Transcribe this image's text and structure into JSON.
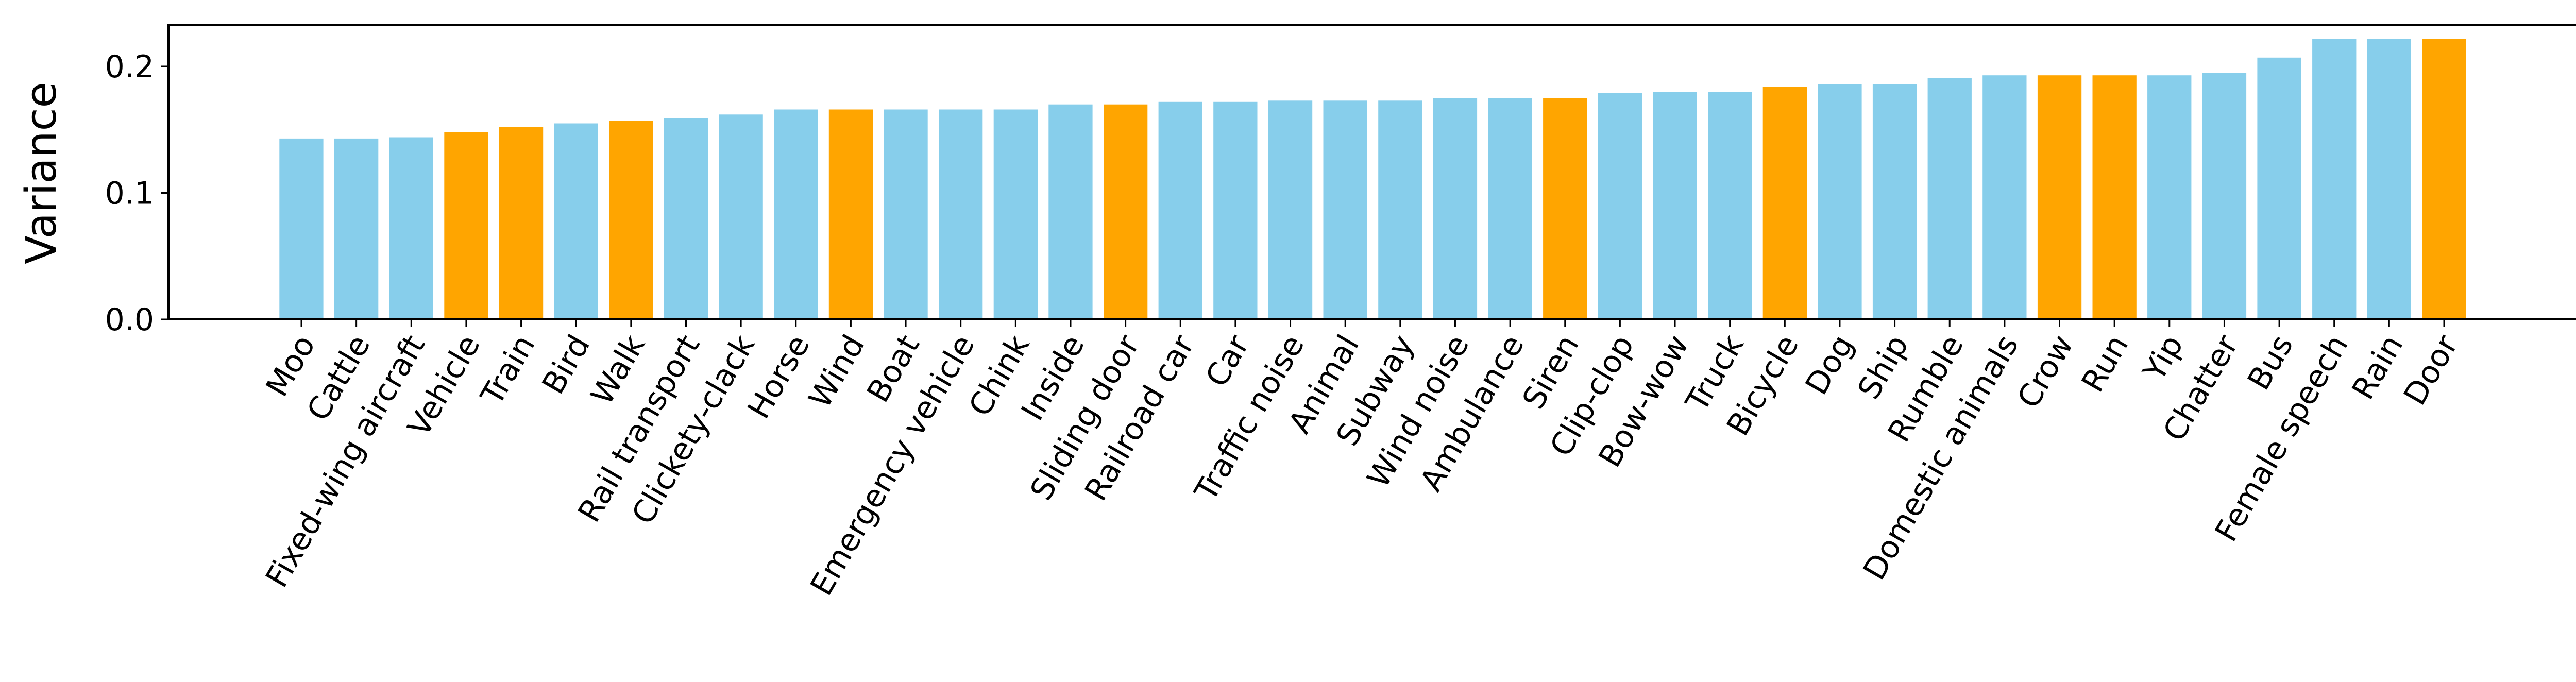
{
  "chart_data": {
    "type": "bar",
    "title": "",
    "xlabel": "",
    "ylabel": "Variance",
    "ylim": [
      0,
      0.233
    ],
    "yticks": [
      0.0,
      0.1,
      0.2
    ],
    "ytick_labels": [
      "0.0",
      "0.1",
      "0.2"
    ],
    "categories": [
      "Moo",
      "Cattle",
      "Fixed-wing aircraft",
      "Vehicle",
      "Train",
      "Bird",
      "Walk",
      "Rail transport",
      "Clickety-clack",
      "Horse",
      "Wind",
      "Boat",
      "Emergency vehicle",
      "Chink",
      "Inside",
      "Sliding door",
      "Railroad car",
      "Car",
      "Traffic noise",
      "Animal",
      "Subway",
      "Wind noise",
      "Ambulance",
      "Siren",
      "Clip-clop",
      "Bow-wow",
      "Truck",
      "Bicycle",
      "Dog",
      "Ship",
      "Rumble",
      "Domestic animals",
      "Crow",
      "Run",
      "Yip",
      "Chatter",
      "Bus",
      "Female speech",
      "Rain",
      "Door"
    ],
    "values": [
      0.143,
      0.143,
      0.144,
      0.148,
      0.152,
      0.155,
      0.157,
      0.159,
      0.162,
      0.166,
      0.166,
      0.166,
      0.166,
      0.166,
      0.17,
      0.17,
      0.172,
      0.172,
      0.173,
      0.173,
      0.173,
      0.175,
      0.175,
      0.175,
      0.179,
      0.18,
      0.18,
      0.184,
      0.186,
      0.186,
      0.191,
      0.193,
      0.193,
      0.193,
      0.193,
      0.195,
      0.207,
      0.222,
      0.222,
      0.222
    ],
    "highlighted": [
      false,
      false,
      false,
      true,
      true,
      false,
      true,
      false,
      false,
      false,
      true,
      false,
      false,
      false,
      false,
      true,
      false,
      false,
      false,
      false,
      false,
      false,
      false,
      true,
      false,
      false,
      false,
      true,
      false,
      false,
      false,
      false,
      true,
      true,
      false,
      false,
      false,
      false,
      false,
      true
    ],
    "colors": {
      "default": "#87CEEB",
      "highlight": "#FFA500",
      "axis": "#000000"
    },
    "grid": false,
    "legend": "none"
  }
}
